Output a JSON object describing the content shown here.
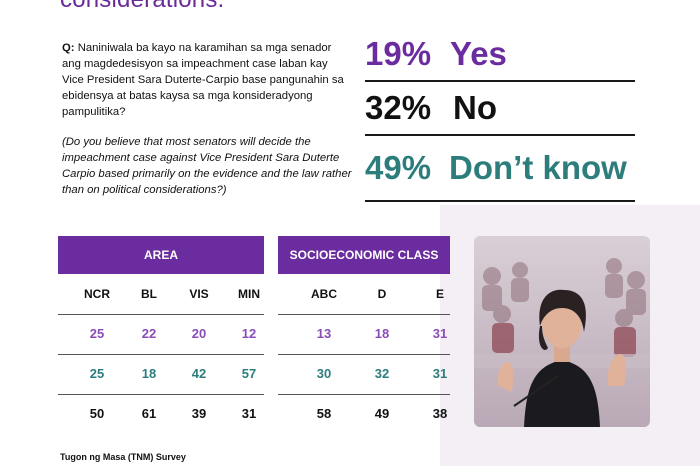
{
  "headline_fragment": "considerations.",
  "question": {
    "label": "Q:",
    "text": "Naniniwala ba kayo na karamihan sa mga senador ang magdedesisyon sa impeachment case laban kay Vice President Sara Duterte-Carpio base pangunahin sa ebidensya at batas kaysa sa mga konsideradyong pampulitika?",
    "translation": "(Do you believe that most senators will decide the impeachment case against Vice President Sara Duterte Carpio based primarily on the evidence and the law rather than on political considerations?)"
  },
  "results": [
    {
      "pct": "19%",
      "label": "Yes"
    },
    {
      "pct": "32%",
      "label": "No"
    },
    {
      "pct": "49%",
      "label": "Don’t know"
    }
  ],
  "table": {
    "groups": [
      "AREA",
      "SOCIOECONOMIC CLASS"
    ]
  },
  "footer": "Tugon ng Masa (TNM) Survey",
  "colors": {
    "purple": "#6a2c9e",
    "teal": "#2d7d7d",
    "black": "#111111"
  },
  "chart_data": {
    "type": "table",
    "columns": [
      "NCR",
      "BL",
      "VIS",
      "MIN",
      "ABC",
      "D",
      "E"
    ],
    "column_groups": [
      {
        "name": "AREA",
        "columns": [
          "NCR",
          "BL",
          "VIS",
          "MIN"
        ]
      },
      {
        "name": "SOCIOECONOMIC CLASS",
        "columns": [
          "ABC",
          "D",
          "E"
        ]
      }
    ],
    "rows": [
      {
        "values": [
          25,
          22,
          20,
          12,
          13,
          18,
          31
        ]
      },
      {
        "values": [
          25,
          18,
          42,
          57,
          30,
          32,
          31
        ]
      },
      {
        "values": [
          50,
          61,
          39,
          31,
          58,
          49,
          38
        ]
      }
    ],
    "overall": [
      19,
      32,
      49
    ]
  }
}
